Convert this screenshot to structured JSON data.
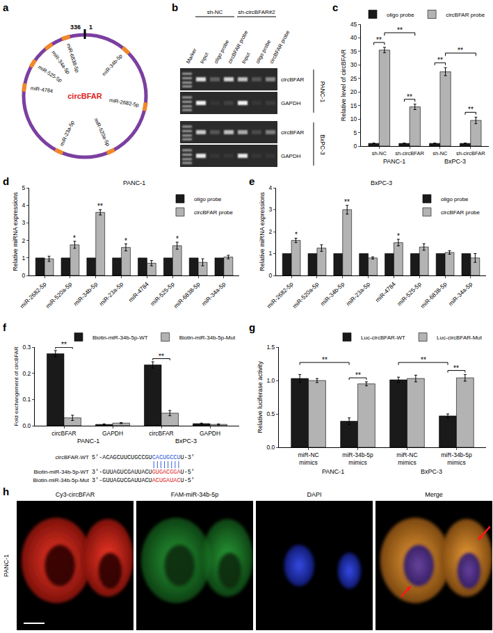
{
  "panels": {
    "a": {
      "letter": "a",
      "center_label": "circBFAR",
      "origin_labels": [
        "336",
        "1"
      ],
      "sites": [
        "miR-6838-5p",
        "miR-34b-5p",
        "miR-2682-5p",
        "miR-520a-5p",
        "miR-23a-5p",
        "miR-4784",
        "miR-525-5p",
        "miR-34a-5p"
      ]
    },
    "b": {
      "letter": "b",
      "marker_label": "Marker",
      "conditions": [
        {
          "label": "sh-NC",
          "lanes": [
            "Input",
            "oligo probe",
            "circBFAR probe"
          ]
        },
        {
          "label": "sh-circBFAR#2",
          "lanes": [
            "Input",
            "oligo probe",
            "circBFAR probe"
          ]
        }
      ],
      "groups": [
        {
          "label": "PANC-1",
          "rows": [
            {
              "label": "circBFAR",
              "bands": [
                0.85,
                0.25,
                0.8,
                0.7,
                0.2,
                0.45
              ]
            },
            {
              "label": "GAPDH",
              "bands": [
                0.95,
                0.05,
                0.1,
                0.95,
                0.05,
                0.08
              ]
            }
          ]
        },
        {
          "label": "BxPC-3",
          "rows": [
            {
              "label": "circBFAR",
              "bands": [
                0.75,
                0.2,
                0.7,
                0.6,
                0.15,
                0.4
              ]
            },
            {
              "label": "GAPDH",
              "bands": [
                0.9,
                0.05,
                0.05,
                0.9,
                0.05,
                0.05
              ]
            }
          ]
        }
      ]
    },
    "f_sequences": [
      {
        "label": "circBFAR-WT",
        "parts": [
          {
            "text": "5'-ACAGCUUCUGCCGU"
          },
          {
            "text": "CACUGCCU",
            "color": "#1f4fd6"
          },
          {
            "text": "U-3'"
          }
        ]
      },
      {
        "label": "Biotin-miR-34b-5p-WT",
        "parts": [
          {
            "text": "3'-GUUAGUCGAUUACU"
          },
          {
            "text": "GUGACGGA",
            "color": "#e0201b"
          },
          {
            "text": "U-5'"
          }
        ]
      },
      {
        "label": "Biotin-miR-34b-5p-Mut",
        "parts": [
          {
            "text": "3'-GUUAGUCGAUUACU"
          },
          {
            "text": "ACUGAUAC",
            "color": "#e0201b"
          },
          {
            "text": "U-5'"
          }
        ]
      }
    ],
    "h": {
      "letter": "h",
      "row_label": "PANC-1",
      "images": [
        "Cy3-circBFAR",
        "FAM-miR-34b-5p",
        "DAPI",
        "Merge"
      ]
    }
  },
  "chart_data": [
    {
      "letter": "c",
      "type": "bar",
      "categories": [
        "sh-NC",
        "sh-circBFAR",
        "sh-NC",
        "sh-circBFAR"
      ],
      "groups": [
        {
          "label": "PANC-1",
          "categories": [
            0,
            1
          ]
        },
        {
          "label": "BxPC-3",
          "categories": [
            2,
            3
          ]
        }
      ],
      "series": [
        {
          "name": "oligo probe",
          "color": "#1a1a1a",
          "values": [
            1,
            1,
            1,
            1
          ],
          "errors": [
            0.1,
            0.1,
            0.1,
            0.1
          ]
        },
        {
          "name": "circBFAR probe",
          "color": "#b3b3b3",
          "values": [
            35.5,
            14.5,
            27.5,
            9.5
          ],
          "errors": [
            1.0,
            1.0,
            1.5,
            1.2
          ]
        }
      ],
      "y_label": "Relative level of circBFAR",
      "ylim": [
        0,
        45
      ],
      "yticks": [
        0,
        5,
        10,
        15,
        20,
        25,
        30,
        35,
        40,
        45
      ],
      "legend": "top",
      "significance": [
        {
          "category": 0,
          "text": "**"
        },
        {
          "category": 1,
          "text": "**"
        },
        {
          "category": 2,
          "text": "**"
        },
        {
          "category": 3,
          "text": "**"
        }
      ],
      "comparisons": [
        {
          "categories": [
            0,
            1
          ],
          "series": 1,
          "text": "**"
        },
        {
          "categories": [
            2,
            3
          ],
          "series": 1,
          "text": "**"
        }
      ]
    },
    {
      "letter": "d",
      "type": "bar",
      "categories": [
        "miR-2682-5p",
        "miR-520a-5p",
        "miR-34b-5p",
        "miR-23a-5p",
        "miR-4784",
        "miR-525-5p",
        "miR-6838-5p",
        "miR-34a-5p"
      ],
      "series": [
        {
          "name": "oligo probe",
          "color": "#1a1a1a",
          "values": [
            1,
            1,
            1,
            1,
            1,
            1,
            1,
            1
          ]
        },
        {
          "name": "circBFAR probe",
          "color": "#b3b3b3",
          "values": [
            0.95,
            1.75,
            3.6,
            1.6,
            0.7,
            1.7,
            0.75,
            1.05
          ],
          "errors": [
            0.15,
            0.2,
            0.15,
            0.2,
            0.15,
            0.2,
            0.2,
            0.1
          ]
        }
      ],
      "y_label": "Relative miRNA expressions",
      "ylim": [
        0,
        5
      ],
      "yticks": [
        0,
        1,
        2,
        3,
        4,
        5
      ],
      "legend": "top right",
      "significance": [
        {
          "category": 1,
          "series": 1,
          "text": "*"
        },
        {
          "category": 2,
          "series": 1,
          "text": "**"
        },
        {
          "category": 3,
          "series": 1,
          "text": "*"
        },
        {
          "category": 5,
          "series": 1,
          "text": "*"
        }
      ],
      "group_caption": "PANC-1"
    },
    {
      "letter": "e",
      "type": "bar",
      "categories": [
        "miR-2682-5p",
        "miR-520a-5p",
        "miR-34b-5p",
        "miR-23a-5p",
        "miR-4784",
        "miR-525-5p",
        "miR-6838-5p",
        "miR-34a-5p"
      ],
      "series": [
        {
          "name": "oligo probe",
          "color": "#1a1a1a",
          "values": [
            1,
            1,
            1,
            1,
            1,
            1,
            1,
            1
          ]
        },
        {
          "name": "circBFAR probe",
          "color": "#b3b3b3",
          "values": [
            1.6,
            1.25,
            3.0,
            0.8,
            1.5,
            1.3,
            1.05,
            0.8
          ],
          "errors": [
            0.1,
            0.15,
            0.2,
            0.05,
            0.15,
            0.15,
            0.08,
            0.2
          ]
        }
      ],
      "y_label": "Relative miRNA expressions",
      "ylim": [
        0,
        4
      ],
      "yticks": [
        0,
        1,
        2,
        3,
        4
      ],
      "legend": "top right",
      "significance": [
        {
          "category": 0,
          "series": 1,
          "text": "*"
        },
        {
          "category": 2,
          "series": 1,
          "text": "**"
        },
        {
          "category": 4,
          "series": 1,
          "text": "*"
        }
      ],
      "group_caption": "BxPC-3"
    },
    {
      "letter": "f",
      "type": "bar",
      "categories": [
        "circBFAR",
        "GAPDH",
        "circBFAR",
        "GAPDH"
      ],
      "groups": [
        {
          "label": "PANC-1",
          "categories": [
            0,
            1
          ]
        },
        {
          "label": "BxPC-3",
          "categories": [
            2,
            3
          ]
        }
      ],
      "series": [
        {
          "name": "Biotin-miR-34b-5p-WT",
          "color": "#1a1a1a",
          "values": [
            0.275,
            0.005,
            0.232,
            0.008
          ],
          "errors": [
            0.012,
            0.002,
            0.012,
            0.002
          ]
        },
        {
          "name": "Biotin-miR-34b-5p-Mut",
          "color": "#b3b3b3",
          "values": [
            0.03,
            0.01,
            0.048,
            0.005
          ],
          "errors": [
            0.01,
            0.002,
            0.01,
            0.002
          ]
        }
      ],
      "y_label": "Fold exchangement of circBFAR",
      "ylim": [
        0,
        0.3
      ],
      "yticks": [
        {
          "value": 0,
          "label": "0.0"
        },
        0.1,
        0.2,
        0.3
      ],
      "legend": "top",
      "significance": [
        {
          "category": 0,
          "text": "**"
        },
        {
          "category": 2,
          "text": "**"
        }
      ]
    },
    {
      "letter": "g",
      "type": "bar",
      "categories": [
        "miR-NC mimics",
        "miR-34b-5p mimics",
        "miR-NC mimics",
        "miR-34b-5p mimics"
      ],
      "groups": [
        {
          "label": "PANC-1",
          "categories": [
            0,
            1
          ]
        },
        {
          "label": "BxPC-3",
          "categories": [
            2,
            3
          ]
        }
      ],
      "series": [
        {
          "name": "Luc-circBFAR-WT",
          "color": "#1a1a1a",
          "values": [
            1.03,
            0.39,
            1.01,
            0.47
          ],
          "errors": [
            0.06,
            0.05,
            0.04,
            0.03
          ]
        },
        {
          "name": "Luc-circBFAR-Mut",
          "color": "#b3b3b3",
          "values": [
            1.0,
            0.95,
            1.03,
            1.04
          ],
          "errors": [
            0.03,
            0.03,
            0.05,
            0.05
          ]
        }
      ],
      "y_label": "Relative luciferase activity",
      "ylim": [
        0,
        1.5
      ],
      "yticks": [
        {
          "value": 0,
          "label": "0.0"
        },
        0.5,
        {
          "value": 1,
          "label": "1.0"
        },
        1.5
      ],
      "legend": "top",
      "significance": [
        {
          "category": 1,
          "text": "**"
        },
        {
          "category": 3,
          "text": "**"
        }
      ],
      "comparisons": [
        {
          "categories": [
            0,
            1
          ],
          "series": 0,
          "text": "**"
        },
        {
          "categories": [
            2,
            3
          ],
          "series": 0,
          "text": "**"
        }
      ]
    }
  ]
}
